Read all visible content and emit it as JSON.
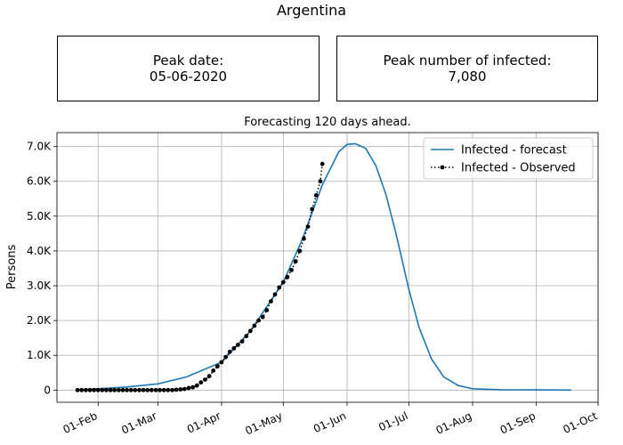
{
  "figure": {
    "title": "Argentina",
    "peak_date_label": "Peak date:",
    "peak_date_value": "05-06-2020",
    "peak_infected_label": "Peak number of infected:",
    "peak_infected_value": "7,080"
  },
  "chart_data": {
    "type": "line",
    "title": "Forecasting 120 days ahead.",
    "xlabel": "",
    "ylabel": "Persons",
    "x_type": "date",
    "xlim": [
      "2020-01-12",
      "2020-10-01"
    ],
    "ylim": [
      -350,
      7400
    ],
    "x_ticks": [
      {
        "date": "2020-02-01",
        "label": "01-Feb"
      },
      {
        "date": "2020-03-01",
        "label": "01-Mar"
      },
      {
        "date": "2020-04-01",
        "label": "01-Apr"
      },
      {
        "date": "2020-05-01",
        "label": "01-May"
      },
      {
        "date": "2020-06-01",
        "label": "01-Jun"
      },
      {
        "date": "2020-07-01",
        "label": "01-Jul"
      },
      {
        "date": "2020-08-01",
        "label": "01-Aug"
      },
      {
        "date": "2020-09-01",
        "label": "01-Sep"
      },
      {
        "date": "2020-10-01",
        "label": "01-Oct"
      }
    ],
    "y_ticks": [
      {
        "value": 0,
        "label": "0"
      },
      {
        "value": 1000,
        "label": "1.0K"
      },
      {
        "value": 2000,
        "label": "2.0K"
      },
      {
        "value": 3000,
        "label": "3.0K"
      },
      {
        "value": 4000,
        "label": "4.0K"
      },
      {
        "value": 5000,
        "label": "5.0K"
      },
      {
        "value": 6000,
        "label": "6.0K"
      },
      {
        "value": 7000,
        "label": "7.0K"
      }
    ],
    "grid": true,
    "legend_position": "top-right",
    "series": [
      {
        "name": "Infected - forecast",
        "color": "#1f77b4",
        "style": "solid",
        "points": [
          [
            "2020-01-22",
            0
          ],
          [
            "2020-02-01",
            40
          ],
          [
            "2020-02-15",
            90
          ],
          [
            "2020-03-01",
            180
          ],
          [
            "2020-03-15",
            380
          ],
          [
            "2020-04-01",
            800
          ],
          [
            "2020-04-15",
            1700
          ],
          [
            "2020-05-01",
            3100
          ],
          [
            "2020-05-10",
            4300
          ],
          [
            "2020-05-20",
            5900
          ],
          [
            "2020-05-28",
            6850
          ],
          [
            "2020-06-01",
            7060
          ],
          [
            "2020-06-05",
            7080
          ],
          [
            "2020-06-10",
            6950
          ],
          [
            "2020-06-15",
            6450
          ],
          [
            "2020-06-20",
            5600
          ],
          [
            "2020-06-25",
            4450
          ],
          [
            "2020-07-01",
            2900
          ],
          [
            "2020-07-06",
            1800
          ],
          [
            "2020-07-12",
            900
          ],
          [
            "2020-07-18",
            380
          ],
          [
            "2020-07-25",
            130
          ],
          [
            "2020-08-01",
            40
          ],
          [
            "2020-08-15",
            10
          ],
          [
            "2020-09-01",
            5
          ],
          [
            "2020-09-18",
            0
          ]
        ]
      },
      {
        "name": "Infected - Observed",
        "color": "#000000",
        "style": "dotted",
        "marker": "circle",
        "points": [
          [
            "2020-01-22",
            0
          ],
          [
            "2020-01-24",
            0
          ],
          [
            "2020-01-26",
            0
          ],
          [
            "2020-01-28",
            0
          ],
          [
            "2020-01-30",
            0
          ],
          [
            "2020-02-01",
            0
          ],
          [
            "2020-02-03",
            0
          ],
          [
            "2020-02-05",
            0
          ],
          [
            "2020-02-07",
            0
          ],
          [
            "2020-02-09",
            0
          ],
          [
            "2020-02-11",
            0
          ],
          [
            "2020-02-13",
            0
          ],
          [
            "2020-02-15",
            0
          ],
          [
            "2020-02-17",
            0
          ],
          [
            "2020-02-19",
            0
          ],
          [
            "2020-02-21",
            0
          ],
          [
            "2020-02-23",
            0
          ],
          [
            "2020-02-25",
            0
          ],
          [
            "2020-02-27",
            0
          ],
          [
            "2020-02-29",
            0
          ],
          [
            "2020-03-02",
            0
          ],
          [
            "2020-03-04",
            0
          ],
          [
            "2020-03-06",
            0
          ],
          [
            "2020-03-08",
            0
          ],
          [
            "2020-03-10",
            10
          ],
          [
            "2020-03-12",
            20
          ],
          [
            "2020-03-14",
            30
          ],
          [
            "2020-03-16",
            60
          ],
          [
            "2020-03-18",
            80
          ],
          [
            "2020-03-20",
            130
          ],
          [
            "2020-03-22",
            220
          ],
          [
            "2020-03-24",
            300
          ],
          [
            "2020-03-26",
            400
          ],
          [
            "2020-03-28",
            560
          ],
          [
            "2020-03-30",
            680
          ],
          [
            "2020-04-01",
            800
          ],
          [
            "2020-04-03",
            950
          ],
          [
            "2020-04-05",
            1100
          ],
          [
            "2020-04-07",
            1200
          ],
          [
            "2020-04-09",
            1300
          ],
          [
            "2020-04-11",
            1400
          ],
          [
            "2020-04-13",
            1550
          ],
          [
            "2020-04-15",
            1700
          ],
          [
            "2020-04-17",
            1850
          ],
          [
            "2020-04-19",
            2000
          ],
          [
            "2020-04-21",
            2100
          ],
          [
            "2020-04-23",
            2300
          ],
          [
            "2020-04-25",
            2550
          ],
          [
            "2020-04-27",
            2750
          ],
          [
            "2020-04-29",
            2950
          ],
          [
            "2020-05-01",
            3100
          ],
          [
            "2020-05-03",
            3250
          ],
          [
            "2020-05-05",
            3450
          ],
          [
            "2020-05-07",
            3700
          ],
          [
            "2020-05-09",
            4000
          ],
          [
            "2020-05-11",
            4350
          ],
          [
            "2020-05-13",
            4700
          ],
          [
            "2020-05-15",
            5200
          ],
          [
            "2020-05-17",
            5600
          ],
          [
            "2020-05-19",
            6000
          ],
          [
            "2020-05-20",
            6500
          ]
        ]
      }
    ]
  }
}
